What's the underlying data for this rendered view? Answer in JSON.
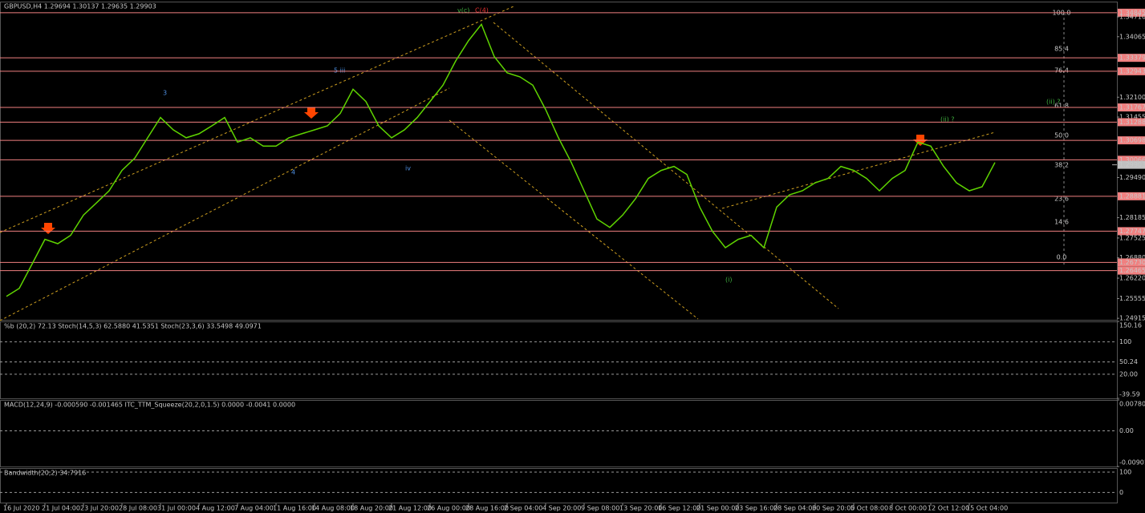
{
  "chart_data": {
    "type": "line",
    "title": "GBPUSD,H4  1.29694 1.30137 1.29635 1.29903",
    "color": "#5fd400",
    "level_color": "#f08080",
    "categories": [
      "16 Jul 2020",
      null,
      null,
      "21 Jul 04:00",
      null,
      null,
      "23 Jul 20:00",
      null,
      null,
      "28 Jul 08:00",
      null,
      null,
      "31 Jul 00:00",
      null,
      null,
      "4 Aug 12:00",
      null,
      null,
      "7 Aug 04:00",
      null,
      null,
      "11 Aug 16:00",
      null,
      null,
      "14 Aug 08:00",
      null,
      null,
      "18 Aug 20:00",
      null,
      null,
      "21 Aug 12:00",
      null,
      null,
      "26 Aug 00:00",
      null,
      null,
      "28 Aug 16:00",
      null,
      null,
      "2 Sep 04:00",
      null,
      null,
      "4 Sep 20:00",
      null,
      null,
      "9 Sep 08:00",
      null,
      null,
      "13 Sep 20:00",
      null,
      null,
      "16 Sep 12:00",
      null,
      null,
      "21 Sep 00:00",
      null,
      null,
      "23 Sep 16:00",
      null,
      null,
      "28 Sep 04:00",
      null,
      null,
      "30 Sep 20:00",
      null,
      null,
      "5 Oct 08:00",
      null,
      null,
      "8 Oct 00:00",
      null,
      null,
      "12 Oct 12:00",
      null,
      null,
      "15 Oct 04:00",
      null,
      null
    ],
    "values": [
      1.2563,
      1.2589,
      1.2668,
      1.2748,
      1.2734,
      1.2761,
      1.2827,
      1.2866,
      1.2906,
      1.2972,
      1.3012,
      1.3078,
      1.3144,
      1.3104,
      1.3078,
      1.3091,
      1.3117,
      1.3144,
      1.3064,
      1.3078,
      1.3051,
      1.3051,
      1.3078,
      1.3091,
      1.3104,
      1.3117,
      1.3157,
      1.3236,
      1.3196,
      1.3117,
      1.3078,
      1.3104,
      1.3144,
      1.3196,
      1.3249,
      1.3328,
      1.3394,
      1.3447,
      1.3342,
      1.3289,
      1.3276,
      1.3249,
      1.317,
      1.3078,
      1.2998,
      1.2906,
      1.2814,
      1.2787,
      1.2827,
      1.288,
      1.2946,
      1.2972,
      1.2985,
      1.2959,
      1.2853,
      1.2774,
      1.2721,
      1.2748,
      1.2761,
      1.2721,
      1.2853,
      1.2893,
      1.2906,
      1.2932,
      1.2946,
      1.2985,
      1.2972,
      1.2946,
      1.2906,
      1.2946,
      1.2972,
      1.3064,
      1.3051,
      1.2985,
      1.2932,
      1.2906,
      1.2919,
      1.2998
    ],
    "ylim": [
      1.2484,
      1.3518
    ],
    "yticks": [
      {
        "value": 1.34845,
        "label": "1.34845",
        "highlight": true
      },
      {
        "value": 1.3471,
        "label": "1.34710"
      },
      {
        "value": 1.34065,
        "label": "1.34065"
      },
      {
        "value": 1.33379,
        "label": "1.33379",
        "highlight": true
      },
      {
        "value": 1.32943,
        "label": "1.32943",
        "highlight": true
      },
      {
        "value": 1.321,
        "label": "1.32100"
      },
      {
        "value": 1.31767,
        "label": "1.31767",
        "highlight": true
      },
      {
        "value": 1.31455,
        "label": "1.31455"
      },
      {
        "value": 1.31288,
        "label": "1.31288",
        "highlight": true
      },
      {
        "value": 1.30698,
        "label": "1.30698",
        "highlight": true
      },
      {
        "value": 1.30066,
        "label": "1.30066",
        "highlight": true
      },
      {
        "value": 1.29903,
        "label": "1.29903",
        "current": true
      },
      {
        "value": 1.2949,
        "label": "1.29490"
      },
      {
        "value": 1.28881,
        "label": "1.28881",
        "highlight": true
      },
      {
        "value": 1.28185,
        "label": "1.28185"
      },
      {
        "value": 1.27747,
        "label": "1.27747",
        "highlight": true
      },
      {
        "value": 1.27525,
        "label": "1.27525"
      },
      {
        "value": 1.2688,
        "label": "1.26880"
      },
      {
        "value": 1.2673,
        "label": "1.26730",
        "highlight": true
      },
      {
        "value": 1.26465,
        "label": "1.26465",
        "highlight": true
      },
      {
        "value": 1.2622,
        "label": "1.26220"
      },
      {
        "value": 1.25555,
        "label": "1.25555"
      },
      {
        "value": 1.24915,
        "label": "1.24915"
      }
    ],
    "annotations": [
      "v(c)",
      "C(4)",
      "3",
      "5 iii",
      "4",
      "iv",
      "(i)",
      "(ii) ?",
      "(ii) ?"
    ],
    "fib_labels": [
      "100.0",
      "85.4",
      "76.4",
      "61.8",
      "50.0",
      "38.2",
      "23.6",
      "14.6",
      "0.0"
    ],
    "panels": [
      {
        "title": "%b (20,2) 72.13  Stoch(14,5,3) 62.5880 41.5351  Stoch(23,3,6) 33.5498 49.0971",
        "ylim": [
          -39.59,
          150.16
        ],
        "yticks": [
          150.16,
          100,
          50.24,
          {
            "value": 20,
            "label": "20.00"
          },
          -39.59
        ]
      },
      {
        "title": "MACD(12,24,9) -0.000590 -0.001465  ITC_TTM_Squeeze(20,2,0,1.5) 0.0000 -0.0041 0.0000",
        "ylim": [
          -0.009012,
          0.007804
        ],
        "yticks": [
          0.007804,
          {
            "value": 0,
            "label": "0.00"
          },
          -0.009012
        ]
      },
      {
        "title": "Bandwidth(20,2) 34.7916",
        "ylim": [
          -50,
          120
        ],
        "yticks": [
          100,
          0
        ]
      }
    ]
  }
}
